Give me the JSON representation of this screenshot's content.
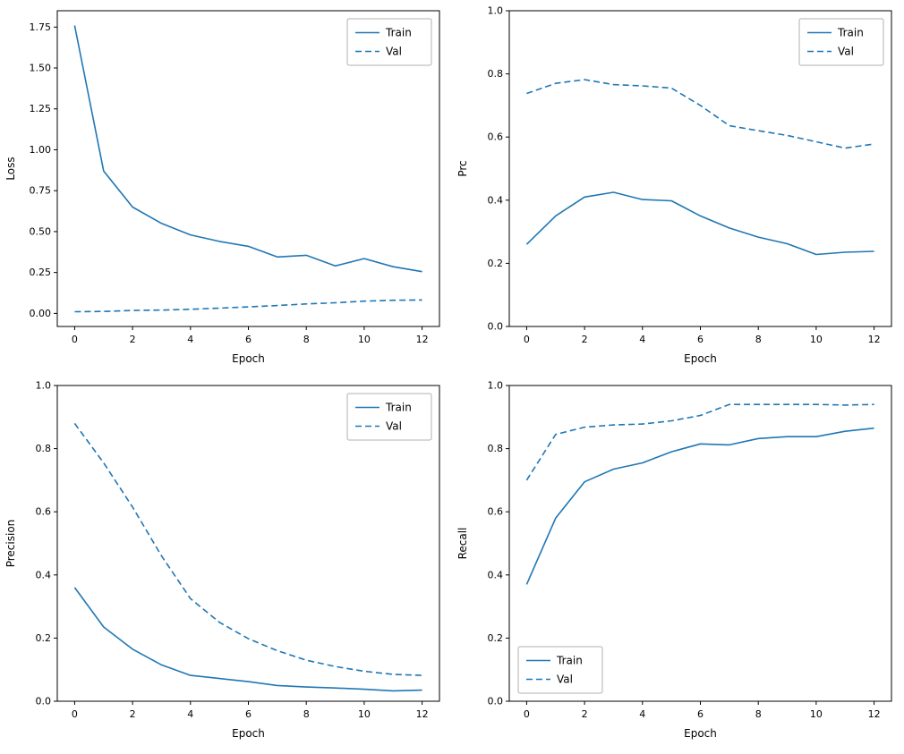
{
  "figure": {
    "background": "#ffffff",
    "line_color": "#1f77b4",
    "legend_border_color": "#b0b0b0",
    "axis_color": "#000000"
  },
  "chart_data": [
    {
      "type": "line",
      "title": "",
      "xlabel": "Epoch",
      "ylabel": "Loss",
      "x": [
        0,
        1,
        2,
        3,
        4,
        5,
        6,
        7,
        8,
        9,
        10,
        11,
        12
      ],
      "xlim": [
        -0.6,
        12.6
      ],
      "ylim": [
        -0.08,
        1.85
      ],
      "xticks": [
        0,
        2,
        4,
        6,
        8,
        10,
        12
      ],
      "xtick_labels": [
        "0",
        "2",
        "4",
        "6",
        "8",
        "10",
        "12"
      ],
      "yticks": [
        0.0,
        0.25,
        0.5,
        0.75,
        1.0,
        1.25,
        1.5,
        1.75
      ],
      "ytick_labels": [
        "0.00",
        "0.25",
        "0.50",
        "0.75",
        "1.00",
        "1.25",
        "1.50",
        "1.75"
      ],
      "legend_loc": "upper-right",
      "grid": false,
      "series": [
        {
          "name": "Train",
          "style": "solid",
          "values": [
            1.76,
            0.87,
            0.65,
            0.55,
            0.48,
            0.44,
            0.41,
            0.345,
            0.355,
            0.29,
            0.335,
            0.285,
            0.255
          ]
        },
        {
          "name": "Val",
          "style": "dashed",
          "values": [
            0.01,
            0.012,
            0.018,
            0.02,
            0.025,
            0.032,
            0.04,
            0.048,
            0.058,
            0.065,
            0.075,
            0.08,
            0.082
          ]
        }
      ]
    },
    {
      "type": "line",
      "title": "",
      "xlabel": "Epoch",
      "ylabel": "Prc",
      "x": [
        0,
        1,
        2,
        3,
        4,
        5,
        6,
        7,
        8,
        9,
        10,
        11,
        12
      ],
      "xlim": [
        -0.6,
        12.6
      ],
      "ylim": [
        0.0,
        1.0
      ],
      "xticks": [
        0,
        2,
        4,
        6,
        8,
        10,
        12
      ],
      "xtick_labels": [
        "0",
        "2",
        "4",
        "6",
        "8",
        "10",
        "12"
      ],
      "yticks": [
        0.0,
        0.2,
        0.4,
        0.6,
        0.8,
        1.0
      ],
      "ytick_labels": [
        "0.0",
        "0.2",
        "0.4",
        "0.6",
        "0.8",
        "1.0"
      ],
      "legend_loc": "upper-right",
      "grid": false,
      "series": [
        {
          "name": "Train",
          "style": "solid",
          "values": [
            0.26,
            0.35,
            0.41,
            0.425,
            0.402,
            0.398,
            0.35,
            0.312,
            0.283,
            0.262,
            0.228,
            0.235,
            0.238
          ]
        },
        {
          "name": "Val",
          "style": "dashed",
          "values": [
            0.738,
            0.77,
            0.782,
            0.766,
            0.762,
            0.755,
            0.7,
            0.636,
            0.62,
            0.605,
            0.585,
            0.565,
            0.578
          ]
        }
      ]
    },
    {
      "type": "line",
      "title": "",
      "xlabel": "Epoch",
      "ylabel": "Precision",
      "x": [
        0,
        1,
        2,
        3,
        4,
        5,
        6,
        7,
        8,
        9,
        10,
        11,
        12
      ],
      "xlim": [
        -0.6,
        12.6
      ],
      "ylim": [
        0.0,
        1.0
      ],
      "xticks": [
        0,
        2,
        4,
        6,
        8,
        10,
        12
      ],
      "xtick_labels": [
        "0",
        "2",
        "4",
        "6",
        "8",
        "10",
        "12"
      ],
      "yticks": [
        0.0,
        0.2,
        0.4,
        0.6,
        0.8,
        1.0
      ],
      "ytick_labels": [
        "0.0",
        "0.2",
        "0.4",
        "0.6",
        "0.8",
        "1.0"
      ],
      "legend_loc": "upper-right",
      "grid": false,
      "series": [
        {
          "name": "Train",
          "style": "solid",
          "values": [
            0.36,
            0.235,
            0.165,
            0.115,
            0.082,
            0.072,
            0.062,
            0.05,
            0.045,
            0.042,
            0.038,
            0.033,
            0.035
          ]
        },
        {
          "name": "Val",
          "style": "dashed",
          "values": [
            0.88,
            0.755,
            0.615,
            0.46,
            0.325,
            0.25,
            0.198,
            0.16,
            0.13,
            0.11,
            0.095,
            0.085,
            0.082
          ]
        }
      ]
    },
    {
      "type": "line",
      "title": "",
      "xlabel": "Epoch",
      "ylabel": "Recall",
      "x": [
        0,
        1,
        2,
        3,
        4,
        5,
        6,
        7,
        8,
        9,
        10,
        11,
        12
      ],
      "xlim": [
        -0.6,
        12.6
      ],
      "ylim": [
        0.0,
        1.0
      ],
      "xticks": [
        0,
        2,
        4,
        6,
        8,
        10,
        12
      ],
      "xtick_labels": [
        "0",
        "2",
        "4",
        "6",
        "8",
        "10",
        "12"
      ],
      "yticks": [
        0.0,
        0.2,
        0.4,
        0.6,
        0.8,
        1.0
      ],
      "ytick_labels": [
        "0.0",
        "0.2",
        "0.4",
        "0.6",
        "0.8",
        "1.0"
      ],
      "legend_loc": "lower-left",
      "grid": false,
      "series": [
        {
          "name": "Train",
          "style": "solid",
          "values": [
            0.37,
            0.58,
            0.695,
            0.735,
            0.755,
            0.79,
            0.815,
            0.812,
            0.832,
            0.838,
            0.838,
            0.855,
            0.865
          ]
        },
        {
          "name": "Val",
          "style": "dashed",
          "values": [
            0.7,
            0.845,
            0.868,
            0.875,
            0.878,
            0.888,
            0.905,
            0.94,
            0.94,
            0.94,
            0.94,
            0.938,
            0.94
          ]
        }
      ]
    }
  ]
}
